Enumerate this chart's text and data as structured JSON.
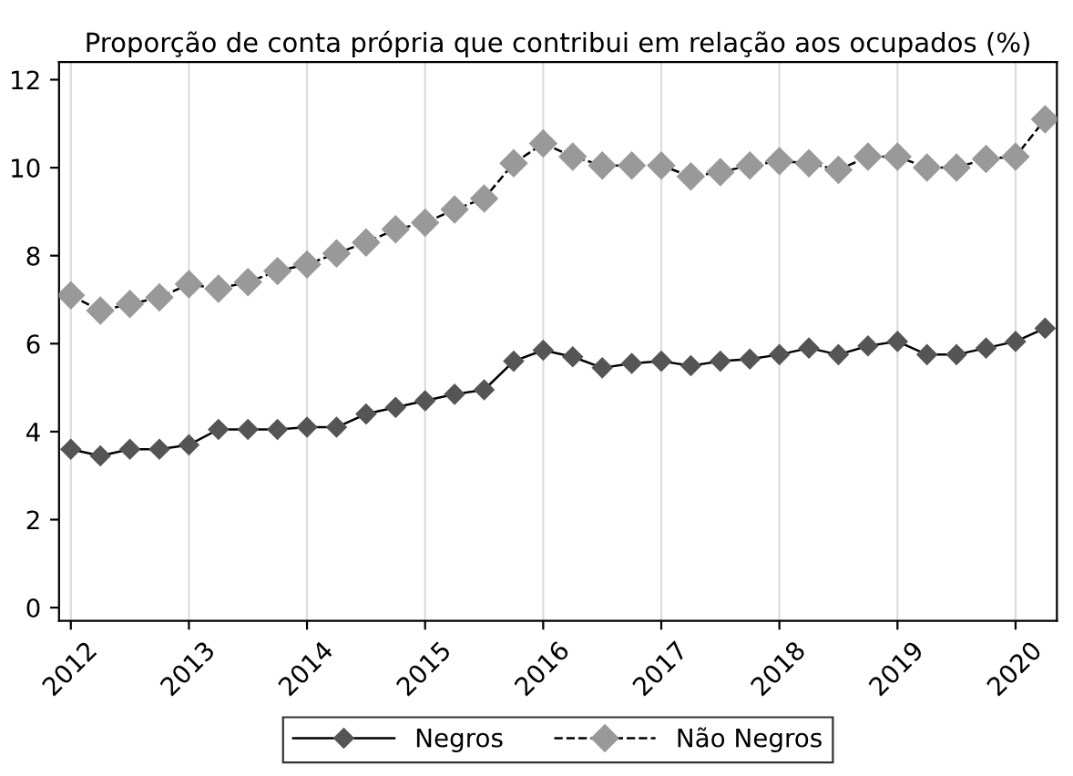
{
  "chart_data": {
    "type": "line",
    "title": "Proporção de conta própria que contribui em relação aos ocupados (%)",
    "x": [
      2012,
      2012.25,
      2012.5,
      2012.75,
      2013,
      2013.25,
      2013.5,
      2013.75,
      2014,
      2014.25,
      2014.5,
      2014.75,
      2015,
      2015.25,
      2015.5,
      2015.75,
      2016,
      2016.25,
      2016.5,
      2016.75,
      2017,
      2017.25,
      2017.5,
      2017.75,
      2018,
      2018.25,
      2018.5,
      2018.75,
      2019,
      2019.25,
      2019.5,
      2019.75,
      2020,
      2020.25
    ],
    "series": [
      {
        "name": "Negros",
        "color": "#555555",
        "line_style": "solid",
        "values": [
          3.6,
          3.45,
          3.6,
          3.6,
          3.7,
          4.05,
          4.05,
          4.05,
          4.1,
          4.1,
          4.4,
          4.55,
          4.7,
          4.85,
          4.95,
          5.6,
          5.85,
          5.7,
          5.45,
          5.55,
          5.6,
          5.5,
          5.6,
          5.65,
          5.75,
          5.9,
          5.75,
          5.95,
          6.05,
          5.75,
          5.75,
          5.9,
          6.05,
          6.35
        ]
      },
      {
        "name": "Não Negros",
        "color": "#999999",
        "line_style": "dashed",
        "values": [
          7.1,
          6.75,
          6.9,
          7.05,
          7.35,
          7.25,
          7.4,
          7.65,
          7.8,
          8.05,
          8.3,
          8.6,
          8.75,
          9.05,
          9.3,
          10.1,
          10.55,
          10.25,
          10.05,
          10.05,
          10.05,
          9.8,
          9.9,
          10.05,
          10.15,
          10.1,
          9.95,
          10.25,
          10.25,
          10.0,
          10.0,
          10.2,
          10.25,
          11.1
        ]
      }
    ],
    "xlim": [
      2011.9,
      2020.35
    ],
    "xticks": [
      2012,
      2013,
      2014,
      2015,
      2016,
      2017,
      2018,
      2019,
      2020
    ],
    "ylim": [
      -0.3,
      12.4
    ],
    "yticks": [
      0,
      2,
      4,
      6,
      8,
      10,
      12
    ],
    "grid": "x",
    "legend": "bottom",
    "marker": "diamond"
  }
}
